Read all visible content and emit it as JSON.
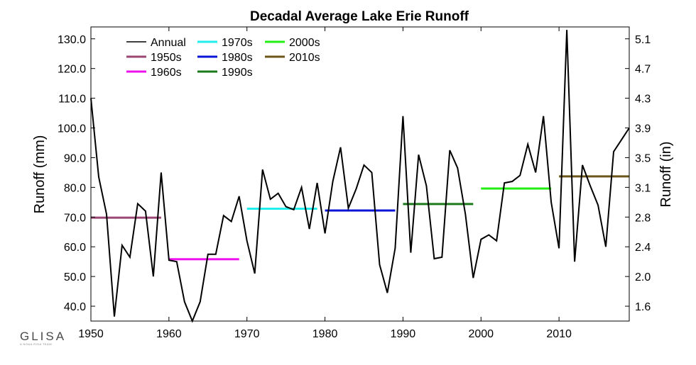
{
  "chart_data": {
    "type": "line",
    "title": "Decadal Average Lake Erie Runoff",
    "ylabel": "Runoff (mm)",
    "ylabel_right": "Runoff (in)",
    "xlim": [
      1950,
      2019
    ],
    "ylim": [
      35,
      134
    ],
    "xticks": [
      "1950",
      "1960",
      "1970",
      "1980",
      "1990",
      "2000",
      "2010"
    ],
    "yticks": [
      "40.0",
      "50.0",
      "60.0",
      "70.0",
      "80.0",
      "90.0",
      "100.0",
      "110.0",
      "120.0",
      "130.0"
    ],
    "yticks_right": [
      "1.6",
      "2.0",
      "2.4",
      "2.8",
      "3.1",
      "3.5",
      "3.9",
      "4.3",
      "4.7",
      "5.1"
    ],
    "legend_position": "top-left",
    "grid": false,
    "annual": {
      "name": "Annual",
      "color": "#000000",
      "x": [
        1950,
        1951,
        1952,
        1953,
        1954,
        1955,
        1956,
        1957,
        1958,
        1959,
        1960,
        1961,
        1962,
        1963,
        1964,
        1965,
        1966,
        1967,
        1968,
        1969,
        1970,
        1971,
        1972,
        1973,
        1974,
        1975,
        1976,
        1977,
        1978,
        1979,
        1980,
        1981,
        1982,
        1983,
        1984,
        1985,
        1986,
        1987,
        1988,
        1989,
        1990,
        1991,
        1992,
        1993,
        1994,
        1995,
        1996,
        1997,
        1998,
        1999,
        2000,
        2001,
        2002,
        2003,
        2004,
        2005,
        2006,
        2007,
        2008,
        2009,
        2010,
        2011,
        2012,
        2013,
        2014,
        2015,
        2016,
        2017,
        2018,
        2019
      ],
      "y": [
        110,
        83.5,
        71,
        36.5,
        60.5,
        56.5,
        74.5,
        72,
        50,
        85,
        55.5,
        55,
        41.5,
        35,
        41.5,
        57.5,
        57.5,
        70.5,
        68.5,
        77,
        62,
        51,
        86,
        76,
        78,
        73.5,
        72.5,
        80,
        66,
        81.5,
        64.5,
        82,
        93.5,
        73,
        79.5,
        87.5,
        85,
        54,
        44.5,
        59.5,
        104,
        58,
        91,
        80.5,
        56,
        56.5,
        92.5,
        86.5,
        71,
        49.5,
        62.5,
        64,
        62,
        81.5,
        82,
        84,
        94.5,
        85,
        104,
        75,
        59.5,
        133,
        55,
        87.5,
        80.5,
        74,
        60,
        92,
        96,
        100
      ]
    },
    "decades": [
      {
        "name": "1950s",
        "color": "#9a4672",
        "x0": 1950,
        "x1": 1959,
        "value": 69.8
      },
      {
        "name": "1960s",
        "color": "#ee11ee",
        "x0": 1960,
        "x1": 1969,
        "value": 55.8
      },
      {
        "name": "1970s",
        "color": "#22eeee",
        "x0": 1970,
        "x1": 1979,
        "value": 72.8
      },
      {
        "name": "1980s",
        "color": "#0a14d8",
        "x0": 1980,
        "x1": 1989,
        "value": 72.2
      },
      {
        "name": "1990s",
        "color": "#1a7a1a",
        "x0": 1990,
        "x1": 1999,
        "value": 74.4
      },
      {
        "name": "2000s",
        "color": "#22ee11",
        "x0": 2000,
        "x1": 2009,
        "value": 79.6
      },
      {
        "name": "2010s",
        "color": "#6b5517",
        "x0": 2010,
        "x1": 2019,
        "value": 83.7
      }
    ]
  },
  "logo": {
    "text": "GLISA",
    "tagline": "A NOAA RISA TEAM"
  }
}
